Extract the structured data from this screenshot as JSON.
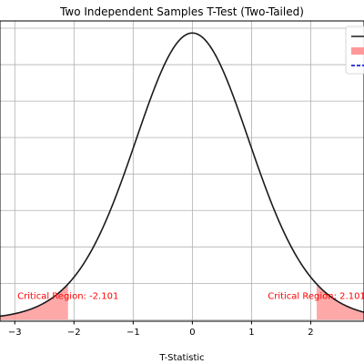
{
  "chart_data": {
    "type": "line",
    "title": "Two Independent Samples T-Test (Two-Tailed)",
    "xlabel": "T-Statistic",
    "ylabel": "",
    "xlim": [
      -3.25,
      2.9
    ],
    "ylim": [
      -0.002,
      0.41
    ],
    "x_ticks": [
      -3,
      -2,
      -1,
      0,
      1,
      2
    ],
    "x_tick_labels": [
      "−3",
      "−2",
      "−1",
      "0",
      "1",
      "2"
    ],
    "y_gridlines": [
      0.0,
      0.05,
      0.1,
      0.15,
      0.2,
      0.25,
      0.3,
      0.35,
      0.4
    ],
    "grid": true,
    "degrees_of_freedom": 18,
    "series": [
      {
        "kind": "line",
        "color": "#1a1a1a",
        "distribution": "t",
        "df": 18
      },
      {
        "kind": "fill",
        "color": "#ff9999",
        "region": "left",
        "from": -3.25,
        "to": -2.101
      },
      {
        "kind": "fill",
        "color": "#ff9999",
        "region": "right",
        "from": 2.101,
        "to": 2.9
      }
    ],
    "annotations": [
      {
        "text": "Critical Region: -2.101",
        "x": -2.101,
        "y": 0.0285,
        "color": "#ff0000"
      },
      {
        "text": "Critical Region: 2.101",
        "x": 2.101,
        "y": 0.0285,
        "color": "#ff0000"
      }
    ],
    "legend": {
      "placement": "top-right",
      "entries": [
        {
          "type": "line",
          "color": "#1a1a1a"
        },
        {
          "type": "patch",
          "color": "#ff9999"
        },
        {
          "type": "dashed",
          "color": "#0000cc"
        }
      ]
    }
  }
}
